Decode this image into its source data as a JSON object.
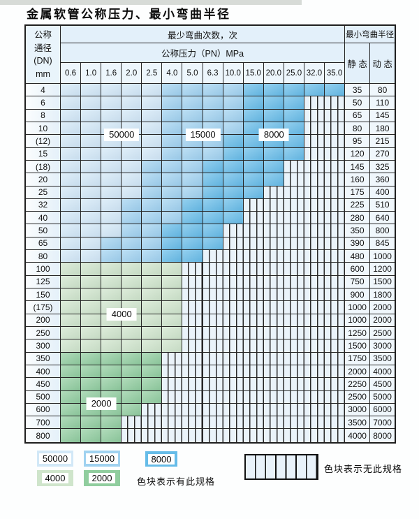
{
  "title": "金属软管公称压力、最小弯曲半径",
  "header": {
    "dn_lines": [
      "公称",
      "通径",
      "(DN)",
      "mm"
    ],
    "bend_times_label": "最少弯曲次数，次",
    "pressure_label": "公称压力（PN）MPa",
    "radius_label": "最小弯曲半径",
    "static_label": "静 态",
    "dynamic_label": "动 态"
  },
  "chart_data": {
    "type": "heatmap",
    "title": "金属软管公称压力、最小弯曲半径",
    "x_label": "公称压力（PN）MPa",
    "x_categories": [
      "0.6",
      "1.0",
      "1.6",
      "2.0",
      "2.5",
      "4.0",
      "5.0",
      "6.3",
      "10.0",
      "15.0",
      "20.0",
      "25.0",
      "32.0",
      "35.0"
    ],
    "y_label": "公称通径(DN) mm",
    "y_categories": [
      "4",
      "6",
      "8",
      "10",
      "(12)",
      "15",
      "(18)",
      "20",
      "25",
      "32",
      "40",
      "50",
      "65",
      "80",
      "100",
      "125",
      "150",
      "(175)",
      "200",
      "250",
      "300",
      "350",
      "400",
      "450",
      "500",
      "600",
      "700",
      "800"
    ],
    "value_meaning": "最少弯曲次数(次); null = 无此规格",
    "matrix": [
      [
        50000,
        50000,
        50000,
        50000,
        50000,
        15000,
        15000,
        15000,
        15000,
        8000,
        8000,
        8000,
        8000,
        8000
      ],
      [
        50000,
        50000,
        50000,
        50000,
        50000,
        15000,
        15000,
        15000,
        15000,
        8000,
        8000,
        8000,
        null,
        null
      ],
      [
        50000,
        50000,
        50000,
        50000,
        50000,
        15000,
        15000,
        15000,
        15000,
        8000,
        8000,
        8000,
        null,
        null
      ],
      [
        50000,
        50000,
        50000,
        50000,
        50000,
        15000,
        15000,
        15000,
        15000,
        8000,
        8000,
        8000,
        null,
        null
      ],
      [
        50000,
        50000,
        50000,
        50000,
        50000,
        15000,
        15000,
        15000,
        8000,
        8000,
        8000,
        8000,
        null,
        null
      ],
      [
        50000,
        50000,
        50000,
        50000,
        50000,
        15000,
        15000,
        15000,
        8000,
        8000,
        8000,
        8000,
        null,
        null
      ],
      [
        50000,
        50000,
        50000,
        50000,
        15000,
        15000,
        15000,
        8000,
        8000,
        8000,
        8000,
        null,
        null,
        null
      ],
      [
        50000,
        50000,
        50000,
        50000,
        15000,
        15000,
        15000,
        8000,
        8000,
        8000,
        8000,
        null,
        null,
        null
      ],
      [
        50000,
        50000,
        50000,
        50000,
        15000,
        15000,
        15000,
        8000,
        8000,
        8000,
        null,
        null,
        null,
        null
      ],
      [
        50000,
        50000,
        50000,
        15000,
        15000,
        15000,
        8000,
        8000,
        8000,
        null,
        null,
        null,
        null,
        null
      ],
      [
        50000,
        50000,
        50000,
        15000,
        15000,
        15000,
        8000,
        8000,
        8000,
        null,
        null,
        null,
        null,
        null
      ],
      [
        50000,
        50000,
        50000,
        15000,
        15000,
        8000,
        8000,
        8000,
        null,
        null,
        null,
        null,
        null,
        null
      ],
      [
        50000,
        50000,
        15000,
        15000,
        15000,
        8000,
        8000,
        8000,
        null,
        null,
        null,
        null,
        null,
        null
      ],
      [
        50000,
        50000,
        15000,
        15000,
        15000,
        8000,
        8000,
        null,
        null,
        null,
        null,
        null,
        null,
        null
      ],
      [
        4000,
        4000,
        4000,
        4000,
        4000,
        4000,
        null,
        null,
        null,
        null,
        null,
        null,
        null,
        null
      ],
      [
        4000,
        4000,
        4000,
        4000,
        4000,
        4000,
        null,
        null,
        null,
        null,
        null,
        null,
        null,
        null
      ],
      [
        4000,
        4000,
        4000,
        4000,
        4000,
        4000,
        null,
        null,
        null,
        null,
        null,
        null,
        null,
        null
      ],
      [
        4000,
        4000,
        4000,
        4000,
        4000,
        4000,
        null,
        null,
        null,
        null,
        null,
        null,
        null,
        null
      ],
      [
        4000,
        4000,
        4000,
        4000,
        4000,
        4000,
        null,
        null,
        null,
        null,
        null,
        null,
        null,
        null
      ],
      [
        4000,
        4000,
        4000,
        4000,
        4000,
        4000,
        null,
        null,
        null,
        null,
        null,
        null,
        null,
        null
      ],
      [
        4000,
        4000,
        4000,
        4000,
        4000,
        4000,
        null,
        null,
        null,
        null,
        null,
        null,
        null,
        null
      ],
      [
        2000,
        2000,
        2000,
        2000,
        2000,
        null,
        null,
        null,
        null,
        null,
        null,
        null,
        null,
        null
      ],
      [
        2000,
        2000,
        2000,
        2000,
        2000,
        null,
        null,
        null,
        null,
        null,
        null,
        null,
        null,
        null
      ],
      [
        2000,
        2000,
        2000,
        2000,
        2000,
        null,
        null,
        null,
        null,
        null,
        null,
        null,
        null,
        null
      ],
      [
        2000,
        2000,
        2000,
        2000,
        2000,
        null,
        null,
        null,
        null,
        null,
        null,
        null,
        null,
        null
      ],
      [
        2000,
        2000,
        2000,
        2000,
        null,
        null,
        null,
        null,
        null,
        null,
        null,
        null,
        null,
        null
      ],
      [
        2000,
        2000,
        2000,
        null,
        null,
        null,
        null,
        null,
        null,
        null,
        null,
        null,
        null,
        null
      ],
      [
        2000,
        2000,
        2000,
        null,
        null,
        null,
        null,
        null,
        null,
        null,
        null,
        null,
        null,
        null
      ]
    ],
    "min_bend_radius_static_mm": [
      35,
      50,
      65,
      80,
      95,
      120,
      145,
      160,
      175,
      225,
      280,
      350,
      390,
      480,
      600,
      750,
      900,
      1000,
      1000,
      1250,
      1500,
      1750,
      2000,
      2250,
      2500,
      3000,
      3500,
      4000
    ],
    "min_bend_radius_dynamic_mm": [
      80,
      110,
      145,
      180,
      215,
      270,
      325,
      360,
      400,
      510,
      640,
      800,
      845,
      1000,
      1200,
      1500,
      1800,
      2000,
      2000,
      2500,
      3000,
      3500,
      4000,
      4500,
      5000,
      6000,
      7000,
      8000
    ]
  },
  "overlays": [
    {
      "text": "50000",
      "row_after": 3,
      "col_start": 2,
      "col_end": 3
    },
    {
      "text": "15000",
      "row_after": 3,
      "col_start": 6,
      "col_end": 7
    },
    {
      "text": "8000",
      "row_after": 3,
      "col_start": 10,
      "col_end": 10
    },
    {
      "text": "4000",
      "row_after": 17,
      "col_start": 2,
      "col_end": 3
    },
    {
      "text": "2000",
      "row_after": 24,
      "col_start": 1,
      "col_end": 2
    }
  ],
  "legend": {
    "row1": [
      {
        "label": "50000",
        "cycles": 50000
      },
      {
        "label": "15000",
        "cycles": 15000
      },
      {
        "label": "8000",
        "cycles": 8000
      }
    ],
    "row2": [
      {
        "label": "4000",
        "cycles": 4000
      },
      {
        "label": "2000",
        "cycles": 2000
      }
    ],
    "has_spec_text": "色块表示有此规格",
    "no_spec_text": "色块表示无此规格"
  },
  "colors": {
    "c50000": "#d2e8f7",
    "c15000": "#a0d2f0",
    "c8000": "#66bce8",
    "c4000": "#cfe5cb",
    "c2000": "#90cd9e",
    "stripe_bg": "#eaf3fa",
    "grid_line": "#262626"
  }
}
